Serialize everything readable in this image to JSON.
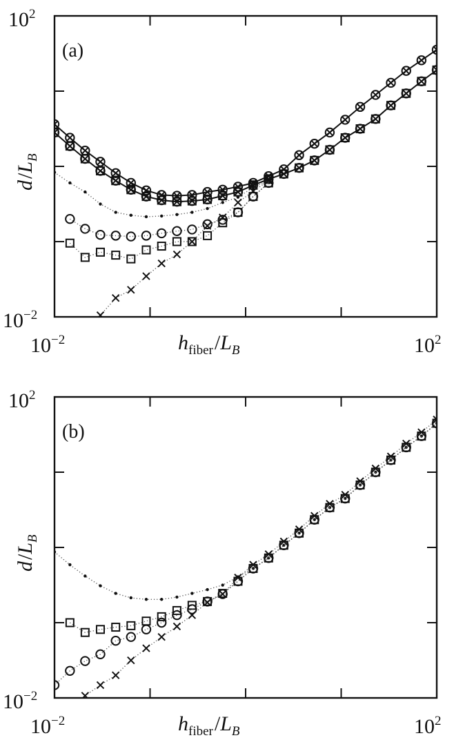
{
  "chart_data": [
    {
      "type": "line",
      "panel_label": "(a)",
      "xlabel": {
        "var": "h",
        "sub": "fiber",
        "sep": "/",
        "var2": "L",
        "sub2": "B"
      },
      "ylabel": {
        "var": "d",
        "sep": "/",
        "var2": "L",
        "sub2": "B"
      },
      "xscale": "log",
      "yscale": "log",
      "xlim": [
        0.01,
        100
      ],
      "ylim": [
        0.01,
        100
      ],
      "xticks": [
        0.01,
        0.1,
        1,
        10,
        100
      ],
      "yticks": [
        0.01,
        0.1,
        1,
        10,
        100
      ],
      "xtick_labels": {
        "min": {
          "base": "10",
          "exp": "−2"
        },
        "max": {
          "base": "10",
          "exp": "2"
        }
      },
      "ytick_labels": {
        "min": {
          "base": "10",
          "exp": "−2"
        },
        "max": {
          "base": "10",
          "exp": "2"
        }
      },
      "grid": false,
      "x": [
        0.01,
        0.0145,
        0.0209,
        0.0302,
        0.0437,
        0.0631,
        0.0912,
        0.132,
        0.191,
        0.275,
        0.398,
        0.575,
        0.832,
        1.2,
        1.74,
        2.51,
        3.63,
        5.25,
        7.59,
        11.0,
        15.8,
        22.9,
        33.1,
        47.9,
        69.2,
        100
      ],
      "series": [
        {
          "line": "solid",
          "markers": [
            "circle",
            "cross"
          ],
          "values": [
            3.63,
            2.4,
            1.62,
            1.15,
            0.813,
            0.603,
            0.479,
            0.417,
            0.407,
            0.417,
            0.457,
            0.49,
            0.537,
            0.603,
            0.741,
            0.912,
            1.41,
            2.0,
            2.82,
            4.17,
            6.17,
            8.91,
            12.9,
            18.6,
            25.7,
            35.5
          ]
        },
        {
          "line": "solid",
          "markers": [
            "cross",
            "circle",
            "square"
          ],
          "values": [
            2.82,
            1.86,
            1.26,
            0.871,
            0.646,
            0.49,
            0.398,
            0.355,
            0.339,
            0.347,
            0.363,
            0.407,
            0.457,
            0.562,
            0.676,
            0.794,
            0.955,
            1.2,
            1.66,
            2.4,
            3.16,
            4.27,
            6.46,
            9.33,
            13.5,
            19.1
          ]
        },
        {
          "line": "dotted",
          "markers": [
            "dot"
          ],
          "values": [
            0.832,
            0.603,
            0.457,
            0.316,
            0.245,
            0.224,
            0.214,
            0.219,
            0.229,
            0.245,
            0.275,
            0.331,
            0.389,
            0.525,
            0.646,
            null,
            null,
            null,
            null,
            null,
            null,
            null,
            null,
            null,
            null,
            null
          ]
        },
        {
          "line": "dotted",
          "markers": [
            "circle"
          ],
          "values": [
            null,
            0.2,
            0.148,
            0.123,
            0.12,
            0.117,
            0.12,
            0.129,
            0.138,
            0.145,
            0.17,
            0.195,
            0.245,
            0.398,
            0.603,
            null,
            null,
            null,
            null,
            null,
            null,
            null,
            null,
            null,
            null,
            null
          ]
        },
        {
          "line": "dotted",
          "markers": [
            "square"
          ],
          "values": [
            null,
            0.0955,
            0.0617,
            0.0724,
            0.0661,
            0.0589,
            0.0776,
            0.0871,
            0.1,
            0.1,
            0.12,
            0.178,
            0.245,
            0.398,
            0.603,
            null,
            null,
            null,
            null,
            null,
            null,
            null,
            null,
            null,
            null,
            null
          ]
        },
        {
          "line": "dotted",
          "markers": [
            "cross"
          ],
          "values": [
            null,
            null,
            null,
            0.0105,
            0.0178,
            0.0229,
            0.0347,
            0.0513,
            0.0676,
            0.1,
            0.162,
            0.209,
            0.331,
            0.468,
            0.646,
            null,
            null,
            null,
            null,
            null,
            null,
            null,
            null,
            null,
            null,
            null
          ]
        }
      ]
    },
    {
      "type": "line",
      "panel_label": "(b)",
      "xlabel": {
        "var": "h",
        "sub": "fiber",
        "sep": "/",
        "var2": "L",
        "sub2": "B"
      },
      "ylabel": {
        "var": "d",
        "sep": "/",
        "var2": "L",
        "sub2": "B"
      },
      "xscale": "log",
      "yscale": "log",
      "xlim": [
        0.01,
        100
      ],
      "ylim": [
        0.01,
        100
      ],
      "xticks": [
        0.01,
        0.1,
        1,
        10,
        100
      ],
      "yticks": [
        0.01,
        0.1,
        1,
        10,
        100
      ],
      "xtick_labels": {
        "min": {
          "base": "10",
          "exp": "−2"
        },
        "max": {
          "base": "10",
          "exp": "2"
        }
      },
      "ytick_labels": {
        "min": {
          "base": "10",
          "exp": "−2"
        },
        "max": {
          "base": "10",
          "exp": "2"
        }
      },
      "grid": false,
      "x": [
        0.01,
        0.0145,
        0.0209,
        0.0302,
        0.0437,
        0.0631,
        0.0912,
        0.132,
        0.191,
        0.275,
        0.398,
        0.575,
        0.832,
        1.2,
        1.74,
        2.51,
        3.63,
        5.25,
        7.59,
        11.0,
        15.8,
        22.9,
        33.1,
        47.9,
        69.2,
        100
      ],
      "series": [
        {
          "line": "dotted",
          "markers": [
            "dot"
          ],
          "values": [
            0.871,
            0.589,
            0.417,
            0.309,
            0.245,
            0.214,
            0.204,
            0.204,
            0.219,
            0.245,
            0.275,
            0.316,
            0.407,
            0.525,
            0.724,
            1.07,
            1.55,
            2.34,
            3.39,
            4.47,
            6.76,
            10.0,
            14.5,
            21.4,
            30.2,
            44.7
          ]
        },
        {
          "line": "dotted",
          "markers": [
            "square"
          ],
          "values": [
            null,
            0.1,
            0.0741,
            0.0813,
            0.0871,
            0.0912,
            0.105,
            0.12,
            0.145,
            0.17,
            0.191,
            0.245,
            0.355,
            0.525,
            0.724,
            1.07,
            1.55,
            2.34,
            3.39,
            4.47,
            6.76,
            10.0,
            14.5,
            21.4,
            30.2,
            44.7
          ]
        },
        {
          "line": "dotted",
          "markers": [
            "circle"
          ],
          "values": [
            0.0148,
            0.0229,
            0.0309,
            0.038,
            0.0575,
            0.0646,
            0.0813,
            0.1,
            0.126,
            0.151,
            0.191,
            0.24,
            0.355,
            0.525,
            0.724,
            1.07,
            1.55,
            2.34,
            3.39,
            4.47,
            6.76,
            10.0,
            14.5,
            21.4,
            30.2,
            44.7
          ]
        },
        {
          "line": "dotted",
          "markers": [
            "cross"
          ],
          "values": [
            null,
            null,
            0.0107,
            0.0148,
            0.02,
            0.0316,
            0.0457,
            0.0646,
            0.0891,
            0.126,
            0.186,
            0.24,
            0.398,
            0.589,
            0.813,
            1.2,
            1.74,
            2.63,
            3.8,
            5.01,
            7.59,
            11.2,
            16.2,
            24.0,
            33.9,
            50.1
          ]
        }
      ]
    }
  ]
}
